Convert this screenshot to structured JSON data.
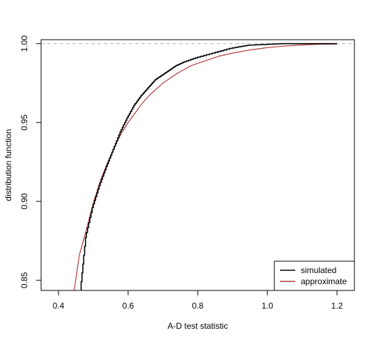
{
  "chart_data": {
    "type": "line",
    "xlabel": "A-D test statistic",
    "ylabel": "distribution function",
    "xlim": [
      0.35,
      1.25
    ],
    "ylim": [
      0.8435,
      1.0025
    ],
    "xticks": [
      0.4,
      0.6,
      0.8,
      1.0,
      1.2
    ],
    "xtick_labels": [
      "0.4",
      "0.6",
      "0.8",
      "1.0",
      "1.2"
    ],
    "yticks": [
      0.85,
      0.9,
      0.95,
      1.0
    ],
    "ytick_labels": [
      "0.85",
      "0.90",
      "0.95",
      "1.00"
    ],
    "reference_line": {
      "y": 1.0,
      "style": "dashed",
      "color": "#b3b3b3"
    },
    "legend": {
      "position": "bottom-right"
    },
    "series": [
      {
        "name": "simulated",
        "color": "#000000",
        "step": true,
        "x": [
          0.465,
          0.48,
          0.5,
          0.52,
          0.54,
          0.56,
          0.58,
          0.6,
          0.62,
          0.64,
          0.66,
          0.68,
          0.7,
          0.72,
          0.74,
          0.76,
          0.8,
          0.85,
          0.9,
          0.95,
          1.0,
          1.05,
          1.1,
          1.15,
          1.2
        ],
        "y": [
          0.8435,
          0.877,
          0.896,
          0.91,
          0.922,
          0.933,
          0.944,
          0.953,
          0.961,
          0.967,
          0.972,
          0.977,
          0.98,
          0.983,
          0.986,
          0.988,
          0.991,
          0.994,
          0.997,
          0.999,
          0.9995,
          1.0,
          1.0,
          1.0,
          1.0
        ]
      },
      {
        "name": "approximate",
        "color": "#b03a3a",
        "step": false,
        "x": [
          0.445,
          0.46,
          0.48,
          0.5,
          0.52,
          0.54,
          0.56,
          0.58,
          0.6,
          0.62,
          0.64,
          0.66,
          0.68,
          0.7,
          0.74,
          0.78,
          0.82,
          0.86,
          0.9,
          0.95,
          1.0,
          1.05,
          1.1,
          1.15,
          1.2
        ],
        "y": [
          0.8435,
          0.866,
          0.882,
          0.899,
          0.913,
          0.924,
          0.934,
          0.943,
          0.95,
          0.956,
          0.962,
          0.967,
          0.971,
          0.975,
          0.981,
          0.986,
          0.989,
          0.992,
          0.994,
          0.996,
          0.9975,
          0.9985,
          0.9992,
          0.9996,
          0.9998
        ]
      }
    ]
  }
}
